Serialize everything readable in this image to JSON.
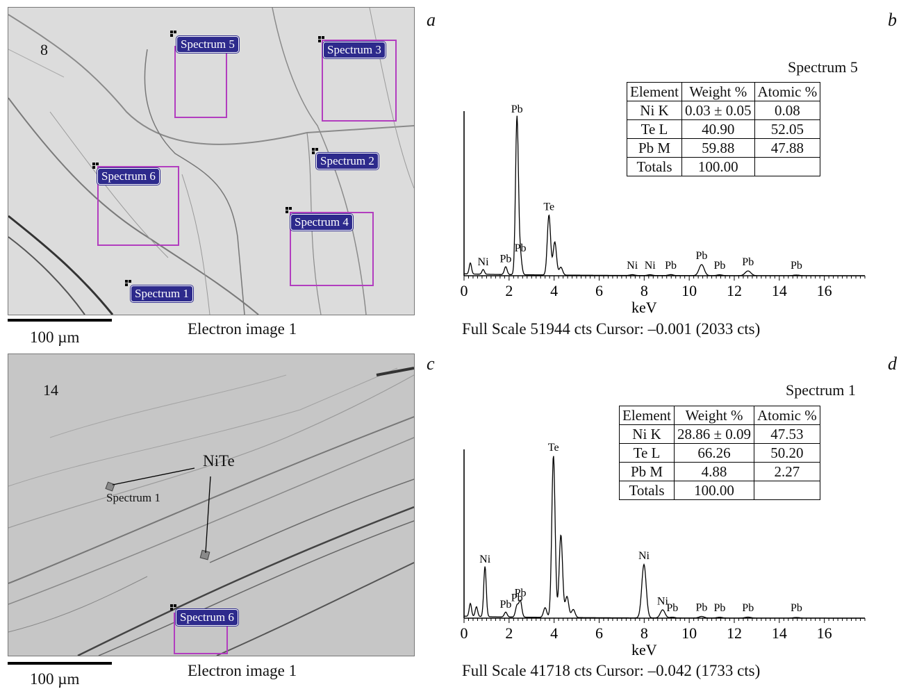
{
  "panels": {
    "a": {
      "letter": "a",
      "image_number": "8",
      "scale_label": "100 µm",
      "caption": "Electron image 1",
      "spectra": [
        "Spectrum 5",
        "Spectrum 3",
        "Spectrum 2",
        "Spectrum 6",
        "Spectrum 4",
        "Spectrum 1"
      ]
    },
    "b": {
      "letter": "b",
      "title": "Spectrum 5",
      "table": {
        "headers": [
          "Element",
          "Weight %",
          "Atomic %"
        ],
        "rows": [
          [
            "Ni K",
            "0.03 ± 0.05",
            "0.08"
          ],
          [
            "Te L",
            "40.90",
            "52.05"
          ],
          [
            "Pb M",
            "59.88",
            "47.88"
          ],
          [
            "Totals",
            "100.00",
            ""
          ]
        ]
      },
      "xlabel": "keV",
      "footer": "Full Scale 51944 cts Cursor: –0.001 (2033 cts)"
    },
    "c": {
      "letter": "c",
      "image_number": "14",
      "scale_label": "100 µm",
      "caption": "Electron image 1",
      "nite_label": "NiTe",
      "plain_spectrum": "Spectrum 1",
      "spectra": [
        "Spectrum 6"
      ]
    },
    "d": {
      "letter": "d",
      "title": "Spectrum 1",
      "table": {
        "headers": [
          "Element",
          "Weight %",
          "Atomic %"
        ],
        "rows": [
          [
            "Ni K",
            "28.86 ± 0.09",
            "47.53"
          ],
          [
            "Te L",
            "66.26",
            "50.20"
          ],
          [
            "Pb M",
            "4.88",
            "2.27"
          ],
          [
            "Totals",
            "100.00",
            ""
          ]
        ]
      },
      "xlabel": "keV",
      "footer": "Full Scale 41718 cts Cursor: –0.042 (1733 cts)"
    }
  },
  "chart_data": [
    {
      "type": "line",
      "title": "Spectrum 5",
      "xlabel": "keV",
      "ylabel": "",
      "xlim": [
        0,
        17.8
      ],
      "x_ticks": [
        0,
        2,
        4,
        6,
        8,
        10,
        12,
        14,
        16
      ],
      "peaks": [
        {
          "label": "",
          "x": 0.28,
          "y": 0.07
        },
        {
          "label": "Ni",
          "x": 0.85,
          "y": 0.03
        },
        {
          "label": "Pb",
          "x": 1.85,
          "y": 0.05
        },
        {
          "label": "Pb",
          "x": 2.35,
          "y": 1.0
        },
        {
          "label": "Pb",
          "x": 2.5,
          "y": 0.12
        },
        {
          "label": "Te",
          "x": 3.77,
          "y": 0.38
        },
        {
          "label": "",
          "x": 4.03,
          "y": 0.21
        },
        {
          "label": "",
          "x": 4.3,
          "y": 0.05
        },
        {
          "label": "Ni",
          "x": 7.47,
          "y": 0.005
        },
        {
          "label": "Ni",
          "x": 8.26,
          "y": 0.005
        },
        {
          "label": "Pb",
          "x": 9.18,
          "y": 0.006
        },
        {
          "label": "Pb",
          "x": 10.55,
          "y": 0.07
        },
        {
          "label": "Pb",
          "x": 11.35,
          "y": 0.005
        },
        {
          "label": "Pb",
          "x": 12.61,
          "y": 0.03
        },
        {
          "label": "Pb",
          "x": 14.76,
          "y": 0.004
        }
      ]
    },
    {
      "type": "line",
      "title": "Spectrum 1",
      "xlabel": "keV",
      "ylabel": "",
      "xlim": [
        0,
        17.8
      ],
      "x_ticks": [
        0,
        2,
        4,
        6,
        8,
        10,
        12,
        14,
        16
      ],
      "peaks": [
        {
          "label": "",
          "x": 0.28,
          "y": 0.08
        },
        {
          "label": "",
          "x": 0.55,
          "y": 0.06
        },
        {
          "label": "Ni",
          "x": 0.93,
          "y": 0.31
        },
        {
          "label": "Pb",
          "x": 1.85,
          "y": 0.03
        },
        {
          "label": "Pb",
          "x": 2.35,
          "y": 0.07
        },
        {
          "label": "Pb",
          "x": 2.5,
          "y": 0.1
        },
        {
          "label": "",
          "x": 3.6,
          "y": 0.06
        },
        {
          "label": "Te",
          "x": 3.97,
          "y": 1.0
        },
        {
          "label": "",
          "x": 4.3,
          "y": 0.51
        },
        {
          "label": "",
          "x": 4.57,
          "y": 0.13
        },
        {
          "label": "",
          "x": 4.85,
          "y": 0.05
        },
        {
          "label": "Ni",
          "x": 7.99,
          "y": 0.33
        },
        {
          "label": "Ni",
          "x": 8.82,
          "y": 0.05
        },
        {
          "label": "Pb",
          "x": 9.25,
          "y": 0.005
        },
        {
          "label": "Pb",
          "x": 10.55,
          "y": 0.01
        },
        {
          "label": "Pb",
          "x": 11.35,
          "y": 0.005
        },
        {
          "label": "Pb",
          "x": 12.61,
          "y": 0.006
        },
        {
          "label": "Pb",
          "x": 14.76,
          "y": 0.004
        }
      ]
    }
  ]
}
